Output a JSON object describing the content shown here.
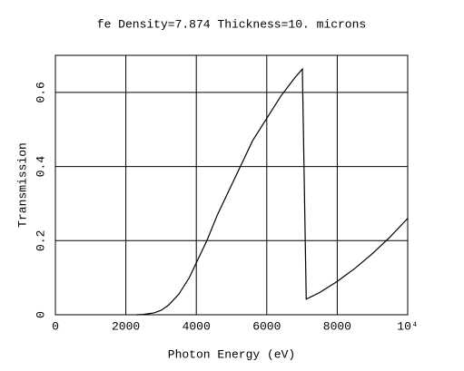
{
  "chart_data": {
    "type": "line",
    "title": "fe Density=7.874 Thickness=10. microns",
    "xlabel": "Photon Energy (eV)",
    "ylabel": "Transmission",
    "x": [
      2300,
      2500,
      2800,
      3000,
      3200,
      3500,
      3800,
      4000,
      4300,
      4600,
      5000,
      5300,
      5600,
      6000,
      6400,
      6800,
      7010,
      7120,
      7500,
      8000,
      8500,
      9000,
      9500,
      10000
    ],
    "series": [
      {
        "name": "Transmission",
        "color": "#000000",
        "values": [
          0,
          0.001,
          0.005,
          0.012,
          0.025,
          0.055,
          0.1,
          0.14,
          0.2,
          0.27,
          0.35,
          0.41,
          0.47,
          0.53,
          0.59,
          0.64,
          0.663,
          0.042,
          0.06,
          0.09,
          0.125,
          0.165,
          0.21,
          0.26
        ]
      }
    ],
    "xlim": [
      0,
      10000
    ],
    "xticks": [
      0,
      2000,
      4000,
      6000,
      8000,
      {
        "value": 10000,
        "label": "10⁴"
      }
    ],
    "ylim": [
      0,
      0.7
    ],
    "yticks": [
      0,
      0.2,
      0.4,
      0.6
    ],
    "grid": true
  }
}
